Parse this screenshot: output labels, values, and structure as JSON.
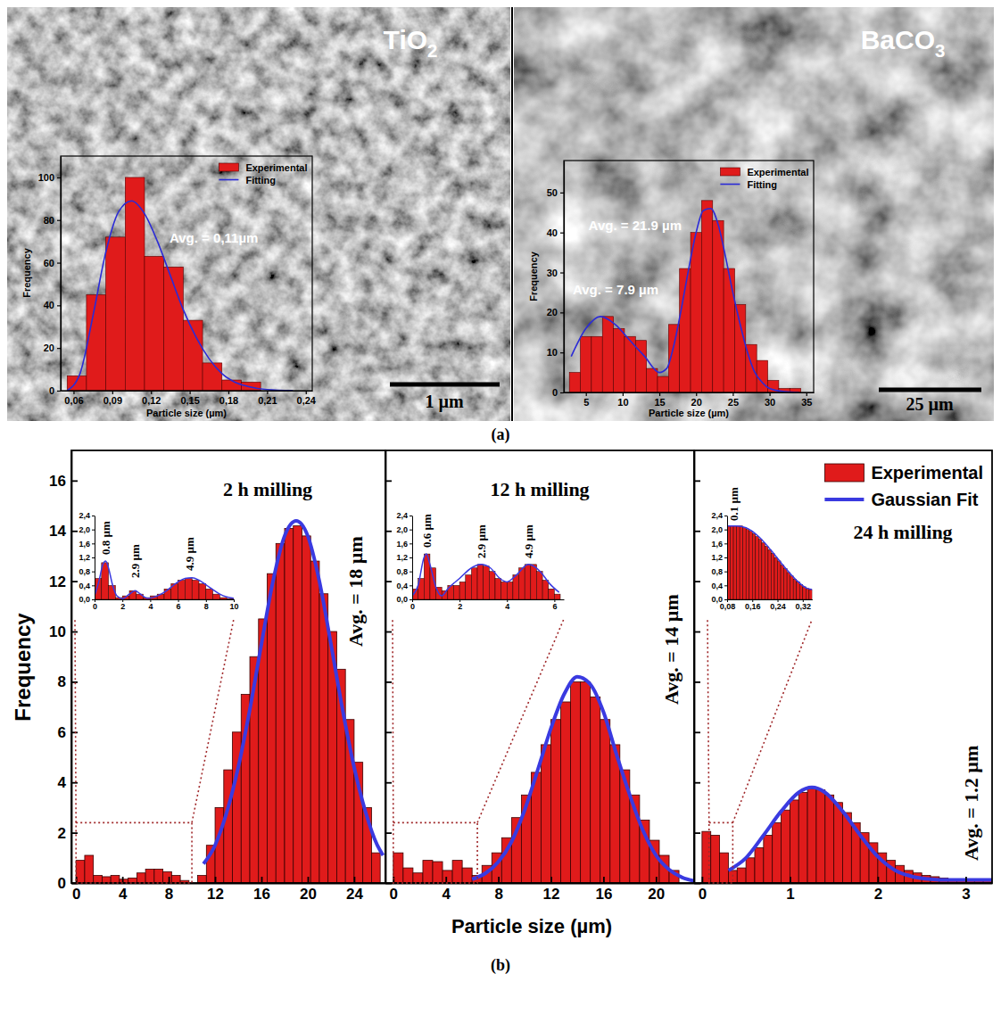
{
  "panel_labels": [
    "(a)",
    "(b)"
  ],
  "chart_data": [
    {
      "type": "histogram",
      "title": "TiO2",
      "x_label": "Particle size (µm)",
      "y_label": "Frequency",
      "bins": [
        0.055,
        0.07,
        0.085,
        0.1,
        0.115,
        0.13,
        0.145,
        0.16,
        0.175,
        0.19,
        0.205
      ],
      "series": [
        {
          "name": "Experimental",
          "type": "bar",
          "color": "#e01b1b",
          "values": [
            7,
            45,
            72,
            100,
            63,
            58,
            33,
            13,
            5,
            4
          ]
        },
        {
          "name": "Fitting",
          "type": "line",
          "color": "#2b2bd6",
          "x": [
            0.055,
            0.065,
            0.075,
            0.085,
            0.095,
            0.105,
            0.115,
            0.125,
            0.135,
            0.145,
            0.155,
            0.165,
            0.175,
            0.185,
            0.195,
            0.21,
            0.23
          ],
          "values": [
            0,
            8,
            35,
            65,
            84,
            89,
            83,
            70,
            54,
            38,
            25,
            15,
            8,
            4,
            2,
            0.5,
            0
          ]
        }
      ],
      "xlim": [
        0.05,
        0.245
      ],
      "xticks": [
        {
          "value": 0.06,
          "label": "0,06"
        },
        {
          "value": 0.09,
          "label": "0,09"
        },
        {
          "value": 0.12,
          "label": "0,12"
        },
        {
          "value": 0.15,
          "label": "0,15"
        },
        {
          "value": 0.18,
          "label": "0,18"
        },
        {
          "value": 0.21,
          "label": "0,21"
        },
        {
          "value": 0.24,
          "label": "0,24"
        }
      ],
      "ylim": [
        0,
        110
      ],
      "yticks": [
        0,
        20,
        40,
        60,
        80,
        100
      ],
      "legend": "upper right",
      "annotations": [
        "Avg. = 0,11µm",
        "1 µm"
      ]
    },
    {
      "type": "histogram",
      "title": "BaCO3",
      "x_label": "Particle size (µm)",
      "y_label": "Frequency",
      "bins": [
        2.75,
        4.25,
        5.75,
        7.25,
        8.75,
        10.25,
        11.75,
        13.25,
        14.75,
        16.25,
        17.75,
        19.25,
        20.75,
        22.25,
        23.75,
        25.25,
        26.75,
        28.25,
        29.75,
        31.25,
        32.75,
        34.25
      ],
      "series": [
        {
          "name": "Experimental",
          "type": "bar",
          "color": "#e01b1b",
          "values": [
            5,
            14,
            14,
            19,
            16,
            14,
            13,
            6,
            4,
            17,
            31,
            40,
            48,
            43,
            31,
            22,
            12,
            8,
            3,
            1,
            1
          ]
        },
        {
          "name": "Fitting",
          "type": "line",
          "color": "#2b2bd6",
          "x": [
            3,
            5,
            7,
            9,
            11,
            13,
            15,
            16,
            17,
            18,
            19,
            20,
            21,
            22,
            23,
            24,
            25,
            26,
            27,
            28,
            29,
            30,
            32,
            34
          ],
          "values": [
            9,
            16,
            19,
            17,
            13,
            9,
            5,
            6,
            12,
            21,
            31,
            40,
            45.5,
            46,
            42,
            34,
            25,
            17,
            10,
            5,
            2.5,
            1,
            0.2,
            0
          ]
        }
      ],
      "xlim": [
        2,
        36
      ],
      "xticks": [
        5,
        10,
        15,
        20,
        25,
        30,
        35
      ],
      "ylim": [
        0,
        58
      ],
      "yticks": [
        0,
        10,
        20,
        30,
        40,
        50
      ],
      "legend": "upper right",
      "annotations": [
        "Avg. = 21.9 µm",
        "Avg. = 7.9 µm",
        "25 µm"
      ]
    },
    {
      "type": "histogram",
      "title": "2 h milling",
      "y_label": "Frequency",
      "bins": [
        0,
        0.75,
        1.5,
        2.25,
        3,
        3.75,
        4.5,
        5.25,
        6,
        6.75,
        7.5,
        8.25,
        9,
        9.75,
        10.5,
        11.25,
        12,
        12.75,
        13.5,
        14.25,
        15,
        15.75,
        16.5,
        17.25,
        18,
        18.75,
        19.5,
        20.25,
        21,
        21.75,
        22.5,
        23.25,
        24,
        24.75,
        25.5,
        26.25
      ],
      "series": [
        {
          "type": "bar",
          "color": "#e01b1b",
          "values": [
            0.9,
            1.1,
            0.3,
            0.25,
            0.3,
            0.15,
            0.2,
            0.4,
            0.55,
            0.55,
            0.45,
            0.3,
            0.1,
            0,
            0.3,
            1.5,
            3,
            4.5,
            6,
            7.5,
            9,
            10.5,
            12.3,
            13.5,
            14.1,
            14.2,
            13.8,
            12.8,
            11.5,
            10,
            8.5,
            6.5,
            4.8,
            3,
            1.2
          ]
        },
        {
          "type": "line",
          "color": "#3a3ae0",
          "x": [
            11,
            12,
            13,
            14,
            15,
            16,
            17,
            18,
            19,
            20,
            21,
            22,
            23,
            24,
            25,
            26,
            26.5
          ],
          "values": [
            0.76,
            1.5,
            2.8,
            4.6,
            6.9,
            9.5,
            12,
            13.8,
            14.4,
            13.8,
            12,
            9.5,
            6.9,
            4.6,
            2.8,
            1.5,
            1.1
          ]
        }
      ],
      "xlim": [
        -0.4,
        26.7
      ],
      "xticks": [
        0,
        4,
        8,
        12,
        16,
        20,
        24
      ],
      "ylim": [
        0,
        17.2
      ],
      "yticks": [
        0,
        2,
        4,
        6,
        8,
        10,
        12,
        14,
        16
      ],
      "annotations": [
        "Avg. = 18 µm"
      ]
    },
    {
      "type": "histogram",
      "bins": [
        0,
        0.5,
        1,
        1.5,
        2,
        2.5,
        3,
        3.5,
        4,
        4.5,
        5,
        5.5,
        6,
        6.5,
        7,
        7.5,
        8,
        8.5,
        9,
        9.5,
        10
      ],
      "series": [
        {
          "type": "bar",
          "color": "#e01b1b",
          "values": [
            0.6,
            1.05,
            0.4,
            0.05,
            0.1,
            0.25,
            0.15,
            0.05,
            0.1,
            0.15,
            0.3,
            0.45,
            0.55,
            0.6,
            0.55,
            0.45,
            0.3,
            0.15,
            0.05,
            0.02
          ]
        },
        {
          "type": "line",
          "color": "#3a3ae0",
          "x": [
            0,
            0.3,
            0.6,
            0.8,
            1,
            1.3,
            1.6,
            2,
            2.5,
            2.9,
            3.3,
            3.8,
            4.5,
            5,
            5.5,
            6,
            6.5,
            7,
            7.5,
            8,
            8.5,
            9,
            9.5,
            10
          ],
          "values": [
            0.1,
            0.5,
            1,
            1.1,
            0.9,
            0.4,
            0.1,
            0.02,
            0.15,
            0.25,
            0.15,
            0.03,
            0.1,
            0.2,
            0.35,
            0.5,
            0.6,
            0.62,
            0.55,
            0.42,
            0.28,
            0.15,
            0.07,
            0.03
          ]
        }
      ],
      "xlim": [
        0,
        10
      ],
      "xticks": [
        0,
        2,
        4,
        6,
        8,
        10
      ],
      "ylim": [
        0,
        2.4
      ],
      "yticks": [
        {
          "value": 0,
          "label": "0,0"
        },
        {
          "value": 0.4,
          "label": "0,4"
        },
        {
          "value": 0.8,
          "label": "0,8"
        },
        {
          "value": 1.2,
          "label": "1,2"
        },
        {
          "value": 1.6,
          "label": "1,6"
        },
        {
          "value": 2,
          "label": "2,0"
        },
        {
          "value": 2.4,
          "label": "2,4"
        }
      ],
      "annotations": [
        "0.8 µm",
        "2.9 µm",
        "4.9 µm"
      ]
    },
    {
      "type": "histogram",
      "title": "12 h milling",
      "x_label": "Particle size (µm)",
      "bins": [
        0,
        0.75,
        1.5,
        2.25,
        3,
        3.75,
        4.5,
        5.25,
        6,
        6.75,
        7.5,
        8.25,
        9,
        9.75,
        10.5,
        11.25,
        12,
        12.75,
        13.5,
        14.25,
        15,
        15.75,
        16.5,
        17.25,
        18,
        18.75,
        19.5,
        20.25,
        21,
        21.75
      ],
      "series": [
        {
          "type": "bar",
          "color": "#e01b1b",
          "values": [
            1.2,
            0.6,
            0.4,
            0.9,
            0.85,
            0.5,
            0.9,
            0.6,
            0.3,
            0.7,
            1.2,
            1.8,
            2.6,
            3.5,
            4.4,
            5.5,
            6.5,
            7.2,
            8,
            8,
            7.4,
            6.5,
            5.5,
            4.5,
            3.5,
            2.5,
            1.7,
            1.1,
            0.5
          ]
        },
        {
          "type": "line",
          "color": "#3a3ae0",
          "x": [
            6,
            7,
            8,
            9,
            10,
            11,
            12,
            13,
            14,
            15,
            16,
            17,
            18,
            19,
            20,
            21,
            22,
            23
          ],
          "values": [
            0.15,
            0.38,
            0.84,
            1.64,
            2.9,
            4.5,
            6.15,
            7.5,
            8.2,
            7.9,
            6.8,
            5.1,
            3.5,
            2.1,
            1.1,
            0.53,
            0.22,
            0.08
          ]
        }
      ],
      "xlim": [
        -0.6,
        22.9
      ],
      "xticks": [
        0,
        4,
        8,
        12,
        16,
        20
      ],
      "ylim": [
        0,
        17.2
      ],
      "yticks": [
        0,
        2,
        4,
        6,
        8,
        10,
        12,
        14,
        16
      ],
      "tick_labels": "x",
      "annotations": [
        "Avg. = 14 µm"
      ]
    },
    {
      "type": "histogram",
      "bins": [
        0,
        0.25,
        0.5,
        0.75,
        1,
        1.25,
        1.5,
        1.75,
        2,
        2.25,
        2.5,
        2.75,
        3,
        3.25,
        3.5,
        3.75,
        4,
        4.25,
        4.5,
        4.75,
        5,
        5.25,
        5.5,
        5.75,
        6,
        6.25
      ],
      "series": [
        {
          "type": "bar",
          "color": "#e01b1b",
          "values": [
            0.3,
            0.6,
            1.3,
            0.9,
            0.35,
            0.25,
            0.4,
            0.4,
            0.5,
            0.7,
            0.9,
            1,
            0.95,
            0.8,
            0.6,
            0.5,
            0.5,
            0.7,
            0.9,
            1,
            1,
            0.8,
            0.55,
            0.3,
            0.15
          ]
        },
        {
          "type": "line",
          "color": "#3a3ae0",
          "x": [
            0,
            0.25,
            0.5,
            0.6,
            0.75,
            1,
            1.25,
            1.5,
            2,
            2.5,
            2.9,
            3.3,
            3.7,
            4,
            4.4,
            4.9,
            5.4,
            5.8,
            6.2
          ],
          "values": [
            0.1,
            0.4,
            1.2,
            1.3,
            1,
            0.35,
            0.1,
            0.3,
            0.6,
            0.9,
            1,
            0.9,
            0.6,
            0.5,
            0.7,
            1,
            0.8,
            0.45,
            0.2
          ]
        }
      ],
      "xlim": [
        0,
        6.4
      ],
      "xticks": [
        0,
        2,
        4,
        6
      ],
      "ylim": [
        0,
        2.4
      ],
      "yticks": [
        {
          "value": 0,
          "label": "0,0"
        },
        {
          "value": 0.4,
          "label": "0,4"
        },
        {
          "value": 0.8,
          "label": "0,8"
        },
        {
          "value": 1.2,
          "label": "1,2"
        },
        {
          "value": 1.6,
          "label": "1,6"
        },
        {
          "value": 2,
          "label": "2,0"
        },
        {
          "value": 2.4,
          "label": "2,4"
        }
      ],
      "annotations": [
        "0.6 µm",
        "2.9 µm",
        "4.9 µm"
      ]
    },
    {
      "type": "histogram",
      "title": "24 h milling",
      "bins": [
        0,
        0.1,
        0.2,
        0.3,
        0.4,
        0.5,
        0.6,
        0.7,
        0.8,
        0.9,
        1,
        1.1,
        1.2,
        1.3,
        1.4,
        1.5,
        1.6,
        1.7,
        1.8,
        1.9,
        2,
        2.1,
        2.2,
        2.3,
        2.4,
        2.5,
        2.6,
        2.7,
        2.8,
        2.9,
        3,
        3.1,
        3.2,
        3.3
      ],
      "series": [
        {
          "name": "Experimental",
          "type": "bar",
          "color": "#e01b1b",
          "values": [
            2.05,
            1.9,
            1.2,
            0.5,
            0.6,
            1,
            1.4,
            1.9,
            2.4,
            2.9,
            3.3,
            3.6,
            3.75,
            3.7,
            3.5,
            3.2,
            2.8,
            2.4,
            2,
            1.6,
            1.2,
            0.9,
            0.7,
            0.5,
            0.4,
            0.3,
            0.25,
            0.2,
            0.15,
            0.12,
            0.1,
            0.1,
            0.1
          ]
        },
        {
          "name": "Gaussian Fit",
          "type": "line",
          "color": "#3a3ae0",
          "x": [
            0.3,
            0.5,
            0.7,
            0.9,
            1.1,
            1.25,
            1.4,
            1.6,
            1.8,
            2,
            2.2,
            2.4,
            2.6,
            2.8,
            3,
            3.3
          ],
          "values": [
            0.5,
            1,
            1.9,
            2.85,
            3.6,
            3.8,
            3.6,
            2.85,
            1.9,
            1.05,
            0.5,
            0.25,
            0.15,
            0.12,
            0.12,
            0.12
          ]
        }
      ],
      "xlim": [
        -0.09,
        3.3
      ],
      "xticks": [
        0,
        1,
        2,
        3
      ],
      "ylim": [
        0,
        17.2
      ],
      "yticks": [
        0,
        2,
        4,
        6,
        8,
        10,
        12,
        14,
        16
      ],
      "tick_labels": "x",
      "legend": "upper right",
      "annotations": [
        "Avg. = 1.2 µm"
      ]
    },
    {
      "type": "histogram",
      "bins": [
        0.08,
        0.09,
        0.1,
        0.11,
        0.12,
        0.13,
        0.14,
        0.15,
        0.16,
        0.17,
        0.18,
        0.19,
        0.2,
        0.21,
        0.22,
        0.23,
        0.24,
        0.25,
        0.26,
        0.27,
        0.28,
        0.29,
        0.3,
        0.31,
        0.32,
        0.33,
        0.34,
        0.35
      ],
      "series": [
        {
          "type": "bar",
          "color": "#e01b1b",
          "values": [
            2.1,
            2.1,
            2.1,
            2.1,
            2.1,
            2.05,
            2,
            1.95,
            1.88,
            1.8,
            1.72,
            1.62,
            1.52,
            1.42,
            1.32,
            1.2,
            1.1,
            0.98,
            0.88,
            0.77,
            0.67,
            0.58,
            0.5,
            0.42,
            0.36,
            0.31,
            0.28
          ]
        },
        {
          "type": "line",
          "color": "#3a3ae0",
          "x": [
            0.08,
            0.11,
            0.14,
            0.18,
            0.22,
            0.26,
            0.3,
            0.33,
            0.35
          ],
          "values": [
            2.1,
            2.1,
            2.05,
            1.8,
            1.4,
            0.95,
            0.55,
            0.33,
            0.28
          ]
        }
      ],
      "xlim": [
        0.08,
        0.35
      ],
      "xticks": [
        {
          "value": 0.08,
          "label": "0,08"
        },
        {
          "value": 0.16,
          "label": "0,16"
        },
        {
          "value": 0.24,
          "label": "0,24"
        },
        {
          "value": 0.32,
          "label": "0,32"
        }
      ],
      "ylim": [
        0,
        2.4
      ],
      "yticks": [
        {
          "value": 0,
          "label": "0,0"
        },
        {
          "value": 0.4,
          "label": "0,4"
        },
        {
          "value": 0.8,
          "label": "0,8"
        },
        {
          "value": 1.2,
          "label": "1,2"
        },
        {
          "value": 1.6,
          "label": "1,6"
        },
        {
          "value": 2,
          "label": "2,0"
        },
        {
          "value": 2.4,
          "label": "2,4"
        }
      ],
      "annotations": [
        "0.1 µm"
      ]
    }
  ]
}
